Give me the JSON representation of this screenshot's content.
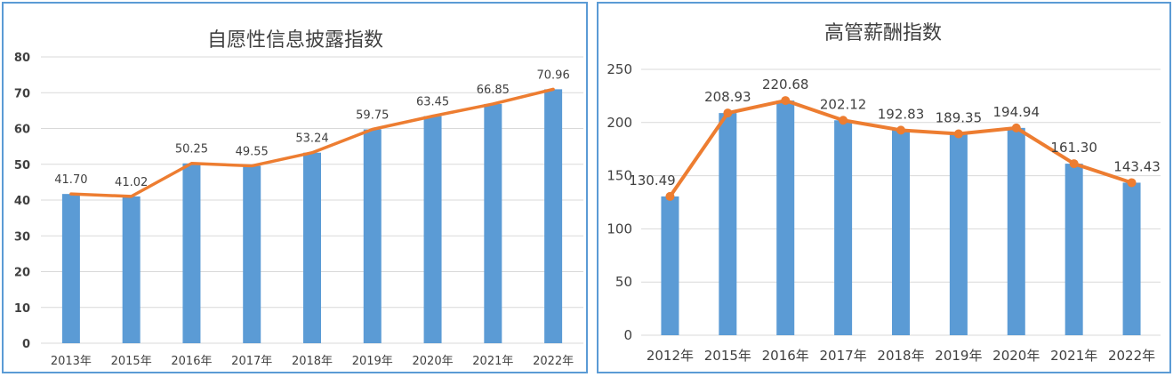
{
  "colors": {
    "bar": "#5b9bd5",
    "line": "#ed7d31",
    "grid": "#d9d9d9",
    "border": "#5b9bd5",
    "text": "#404040"
  },
  "chart_data": [
    {
      "type": "bar",
      "title": "自愿性信息披露指数",
      "categories": [
        "2013年",
        "2015年",
        "2016年",
        "2017年",
        "2018年",
        "2019年",
        "2020年",
        "2021年",
        "2022年"
      ],
      "values": [
        41.7,
        41.02,
        50.25,
        49.55,
        53.24,
        59.75,
        63.45,
        66.85,
        70.96
      ],
      "value_labels": [
        "41.70",
        "41.02",
        "50.25",
        "49.55",
        "53.24",
        "59.75",
        "63.45",
        "66.85",
        "70.96"
      ],
      "overlay_line": true,
      "line_markers": false,
      "ylim": [
        0,
        80
      ],
      "yticks": [
        "0",
        "10",
        "20",
        "30",
        "40",
        "50",
        "60",
        "70",
        "80"
      ],
      "grid": true
    },
    {
      "type": "bar",
      "title": "高管薪酬指数",
      "categories": [
        "2012年",
        "2015年",
        "2016年",
        "2017年",
        "2018年",
        "2019年",
        "2020年",
        "2021年",
        "2022年"
      ],
      "values": [
        130.49,
        208.93,
        220.68,
        202.12,
        192.83,
        189.35,
        194.94,
        161.3,
        143.43
      ],
      "value_labels": [
        "130.49",
        "208.93",
        "220.68",
        "202.12",
        "192.83",
        "189.35",
        "194.94",
        "161.30",
        "143.43"
      ],
      "overlay_line": true,
      "line_markers": true,
      "ylim": [
        0,
        250
      ],
      "yticks": [
        "0",
        "50",
        "100",
        "150",
        "200",
        "250"
      ],
      "grid": true
    }
  ]
}
